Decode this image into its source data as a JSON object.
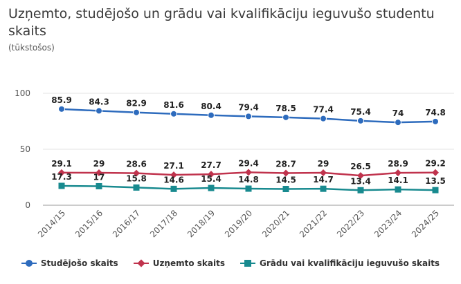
{
  "title": "Uzņemto, studējošo un grādu vai kvalifikāciju ieguvušo studentu skaits",
  "subtitle": "(tūkstošos)",
  "colors": {
    "series1": "#2d6bbd",
    "series2": "#c0334d",
    "series3": "#188a8f",
    "grid": "#e3e3e3"
  },
  "chart_data": {
    "type": "line",
    "title": "Uzņemto, studējošo un grādu vai kvalifikāciju ieguvušo studentu skaits",
    "subtitle": "(tūkstošos)",
    "x": [
      "2014/15",
      "2015/16",
      "2016/17",
      "2017/18",
      "2018/19",
      "2019/20",
      "2020/21",
      "2021/22",
      "2022/23",
      "2023/24",
      "2024/25"
    ],
    "ylim": [
      0,
      100
    ],
    "yticks": [
      0,
      50,
      100
    ],
    "grid": true,
    "legend_position": "bottom",
    "series": [
      {
        "name": "Studējošo skaits",
        "marker": "circle",
        "color": "#2d6bbd",
        "values": [
          85.9,
          84.3,
          82.9,
          81.6,
          80.4,
          79.4,
          78.5,
          77.4,
          75.4,
          74,
          74.8
        ]
      },
      {
        "name": "Uzņemto skaits",
        "marker": "diamond",
        "color": "#c0334d",
        "values": [
          29.1,
          29,
          28.6,
          27.1,
          27.7,
          29.4,
          28.7,
          29,
          26.5,
          28.9,
          29.2
        ]
      },
      {
        "name": "Grādu vai kvalifikāciju ieguvušo skaits",
        "marker": "square",
        "color": "#188a8f",
        "values": [
          17.3,
          17,
          15.8,
          14.6,
          15.4,
          14.8,
          14.5,
          14.7,
          13.4,
          14.1,
          13.5
        ]
      }
    ]
  }
}
